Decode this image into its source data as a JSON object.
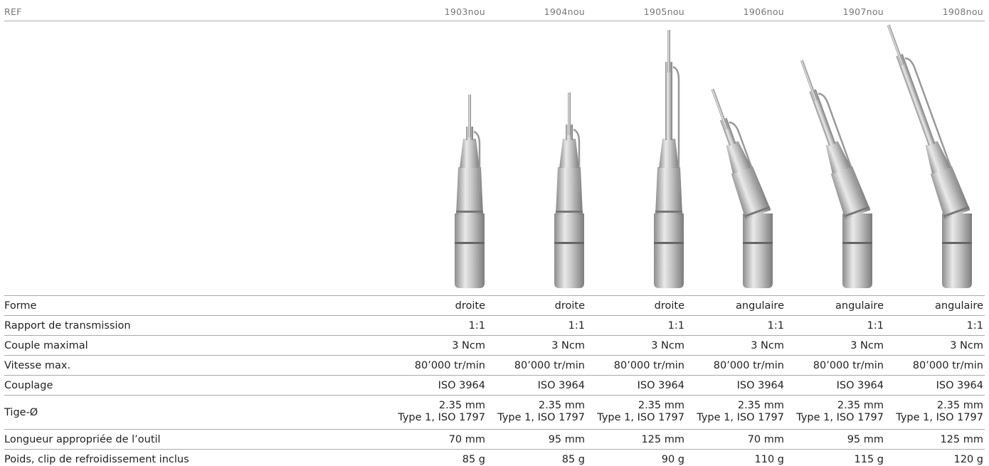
{
  "header": {
    "label": "REF",
    "columns": [
      "1903nou",
      "1904nou",
      "1905nou",
      "1906nou",
      "1907nou",
      "1908nou"
    ]
  },
  "rows": [
    {
      "label": "Forme",
      "cells": [
        "droite",
        "droite",
        "droite",
        "angulaire",
        "angulaire",
        "angulaire"
      ]
    },
    {
      "label": "Rapport de transmission",
      "cells": [
        "1:1",
        "1:1",
        "1:1",
        "1:1",
        "1:1",
        "1:1"
      ]
    },
    {
      "label": "Couple maximal",
      "cells": [
        "3 Ncm",
        "3 Ncm",
        "3 Ncm",
        "3 Ncm",
        "3 Ncm",
        "3 Ncm"
      ]
    },
    {
      "label": "Vitesse max.",
      "cells": [
        "80’000 tr/min",
        "80’000 tr/min",
        "80’000 tr/min",
        "80’000 tr/min",
        "80’000 tr/min",
        "80’000 tr/min"
      ]
    },
    {
      "label": "Couplage",
      "cells": [
        "ISO 3964",
        "ISO 3964",
        "ISO 3964",
        "ISO 3964",
        "ISO 3964",
        "ISO 3964"
      ]
    },
    {
      "label": "Tige-Ø",
      "cells": [
        [
          "2.35 mm",
          "Type 1, ISO 1797"
        ],
        [
          "2.35 mm",
          "Type 1, ISO 1797"
        ],
        [
          "2.35 mm",
          "Type 1, ISO 1797"
        ],
        [
          "2.35 mm",
          "Type 1, ISO 1797"
        ],
        [
          "2.35 mm",
          "Type 1, ISO 1797"
        ],
        [
          "2.35 mm",
          "Type 1, ISO 1797"
        ]
      ]
    },
    {
      "label": "Longueur appropriée de l’outil",
      "cells": [
        "70 mm",
        "95 mm",
        "125 mm",
        "70 mm",
        "95 mm",
        "125 mm"
      ]
    },
    {
      "label": "Poids, clip de refroidissement inclus",
      "cells": [
        "85 g",
        "85 g",
        "90 g",
        "110 g",
        "115 g",
        "120 g"
      ]
    }
  ]
}
